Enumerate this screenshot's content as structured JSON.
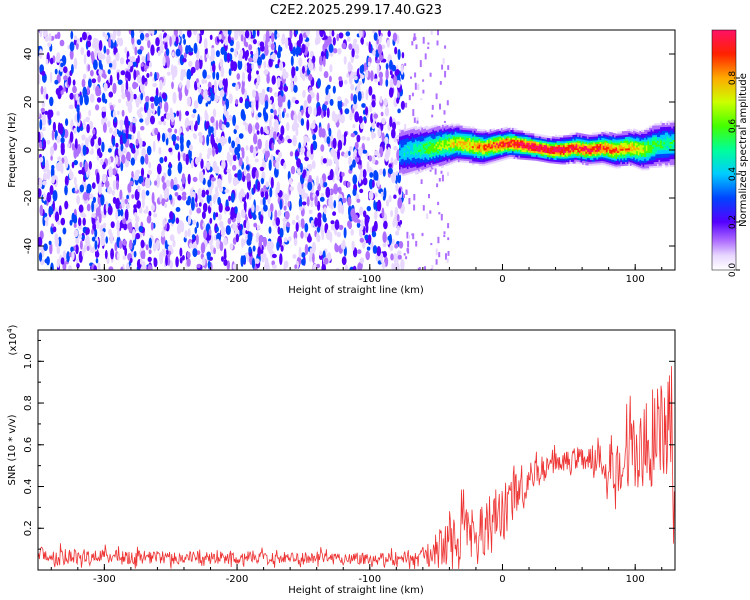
{
  "figure_title": "C2E2.2025.299.17.40.G23",
  "chart_data": [
    {
      "type": "heatmap",
      "name": "spectrogram",
      "xlabel": "Height of straight line (km)",
      "ylabel": "Frequency (Hz)",
      "xlim": [
        -350,
        130
      ],
      "ylim": [
        -50,
        50
      ],
      "xticks": [
        -300,
        -200,
        -100,
        0,
        100
      ],
      "xtick_labels": [
        "-300",
        "-200",
        "-100",
        "0",
        "100"
      ],
      "yticks": [
        -40,
        -20,
        0,
        20,
        40
      ],
      "ytick_labels": [
        "-40",
        "-20",
        "0",
        "20",
        "40"
      ],
      "noise_region_km": [
        -350,
        -75
      ],
      "signal_region_km": [
        -78,
        130
      ],
      "signal_frequency_hz": 0,
      "signal_track": {
        "x": [
          -78,
          -65,
          -55,
          -45,
          -35,
          -25,
          -15,
          -5,
          5,
          15,
          25,
          35,
          45,
          55,
          65,
          75,
          85,
          95,
          105,
          115,
          130
        ],
        "freq": [
          -1,
          0,
          1,
          2,
          3,
          2,
          1,
          2,
          3,
          2,
          1,
          0,
          0,
          1,
          0,
          1,
          0,
          1,
          0,
          2,
          3
        ],
        "amplitude": [
          0.35,
          0.45,
          0.55,
          0.6,
          0.7,
          0.75,
          0.8,
          0.85,
          0.9,
          0.95,
          1.0,
          1.0,
          0.95,
          0.9,
          0.9,
          0.85,
          0.8,
          0.75,
          0.65,
          0.5,
          0.45
        ]
      },
      "colorbar": {
        "label": "Normalized spectral amplitude",
        "range": [
          0,
          1
        ],
        "ticks": [
          0.0,
          0.2,
          0.4,
          0.6,
          0.8
        ],
        "tick_labels": [
          "0.0",
          "0.2",
          "0.4",
          "0.6",
          "0.8"
        ]
      }
    },
    {
      "type": "line",
      "name": "snr",
      "xlabel": "Height of straight line (km)",
      "ylabel": "SNR (10 * v/v)",
      "multiplier_label": "(x10",
      "multiplier_exponent": "4",
      "multiplier_close": ")",
      "xlim": [
        -350,
        130
      ],
      "ylim": [
        0,
        11500
      ],
      "xticks": [
        -300,
        -200,
        -100,
        0,
        100
      ],
      "xtick_labels": [
        "-300",
        "-200",
        "-100",
        "0",
        "100"
      ],
      "yticks": [
        2000,
        4000,
        6000,
        8000,
        10000
      ],
      "ytick_labels": [
        "0.2",
        "0.4",
        "0.6",
        "0.8",
        "1.0"
      ],
      "color": "#ee3333",
      "envelope": {
        "x": [
          -350,
          -300,
          -250,
          -200,
          -150,
          -100,
          -80,
          -60,
          -50,
          -40,
          -30,
          -20,
          -10,
          0,
          10,
          20,
          30,
          40,
          50,
          60,
          70,
          80,
          90,
          100,
          110,
          120,
          130
        ],
        "mean": [
          700,
          650,
          600,
          580,
          560,
          560,
          560,
          620,
          900,
          1400,
          1800,
          2000,
          2200,
          2600,
          3600,
          4400,
          4800,
          5100,
          5300,
          5400,
          5300,
          5000,
          5200,
          5600,
          6000,
          6300,
          6600
        ],
        "spread": [
          500,
          450,
          400,
          380,
          380,
          400,
          420,
          600,
          900,
          1300,
          1700,
          1800,
          1800,
          1900,
          1400,
          900,
          800,
          700,
          700,
          700,
          900,
          1400,
          1900,
          2600,
          3200,
          3800,
          4200
        ]
      }
    }
  ]
}
